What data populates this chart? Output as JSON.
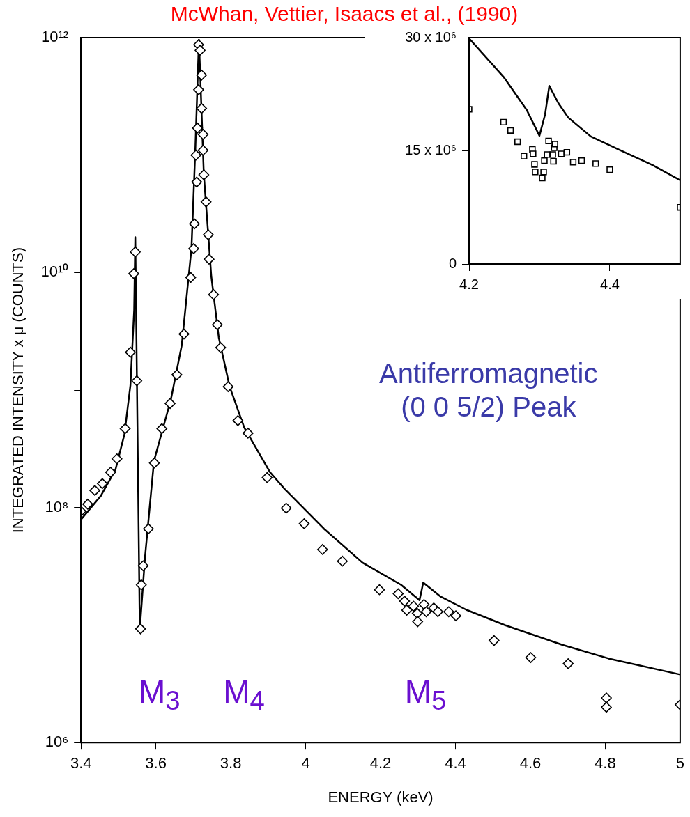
{
  "chart_data": [
    {
      "type": "scatter",
      "title": "McWhan, Vettier, Isaacs et al., (1990)",
      "xlabel": "ENERGY (keV)",
      "ylabel": "INTEGRATED INTENSITY x μ (COUNTS)",
      "log": true,
      "grid": false,
      "xlim": [
        3.4,
        5
      ],
      "xticks": [
        3.4,
        3.6,
        3.8,
        4,
        4.2,
        4.4,
        4.6,
        4.8,
        5
      ],
      "ylim": [
        1000000,
        1000000000000
      ],
      "yticks": [
        {
          "value": 1000000,
          "label": "10⁶"
        },
        {
          "value": 10000000,
          "label": null
        },
        {
          "value": 100000000,
          "label": "10⁸"
        },
        {
          "value": 1000000000,
          "label": null
        },
        {
          "value": 10000000000,
          "label": "10¹⁰"
        },
        {
          "value": 100000000000,
          "label": null
        },
        {
          "value": 1000000000000,
          "label": "10¹²"
        }
      ],
      "annotations": [
        "Antiferromagnetic (0 0 5/2) Peak",
        "M$_{3}$",
        "M$_{4}$",
        "M$_{5}$"
      ],
      "series": [
        {
          "type": "line",
          "marker": "none",
          "color": "#000000",
          "x": [
            3.4,
            3.453,
            3.492,
            3.516,
            3.532,
            3.542,
            3.545,
            3.557,
            3.571,
            3.595,
            3.64,
            3.669,
            3.695,
            3.705,
            3.715,
            3.728,
            3.748,
            3.768,
            3.797,
            3.836,
            3.905,
            3.944,
            4.049,
            4.152,
            4.255,
            4.304,
            4.314,
            4.359,
            4.429,
            4.532,
            4.685,
            4.809,
            5.0
          ],
          "values": [
            79000000,
            126000000,
            210000000,
            420000000,
            1100000000,
            4800000000,
            20000000000,
            9100000,
            38000000,
            250000000,
            830000000,
            2400000000,
            16000000000,
            105000000000,
            960000000000,
            69000000000,
            9300000000,
            2800000000,
            1070000000,
            480000000,
            200000000,
            144000000,
            66000000,
            34000000,
            22000000,
            16300000,
            23000000,
            17600000,
            13500000,
            10000000,
            6800000,
            5200000,
            3800000
          ]
        },
        {
          "type": "scatter",
          "marker": "diamond",
          "color": "#000000",
          "x": [
            3.4,
            3.418,
            3.437,
            3.457,
            3.479,
            3.496,
            3.518,
            3.532,
            3.541,
            3.545,
            3.549,
            3.559,
            3.561,
            3.566,
            3.58,
            3.596,
            3.616,
            3.638,
            3.656,
            3.675,
            3.693,
            3.701,
            3.703,
            3.709,
            3.707,
            3.711,
            3.714,
            3.714,
            3.718,
            3.722,
            3.722,
            3.726,
            3.726,
            3.728,
            3.734,
            3.74,
            3.742,
            3.754,
            3.764,
            3.773,
            3.793,
            3.819,
            3.846,
            3.897,
            3.948,
            3.996,
            4.045,
            4.098,
            4.197,
            4.247,
            4.264,
            4.27,
            4.288,
            4.298,
            4.299,
            4.316,
            4.322,
            4.342,
            4.353,
            4.382,
            4.401,
            4.503,
            4.601,
            4.701,
            4.803,
            4.803,
            5.0
          ],
          "values": [
            93000000,
            107000000,
            140000000,
            160000000,
            200000000,
            260000000,
            470000000,
            2100000000,
            9800000000,
            15000000000,
            1200000000,
            9300000,
            22000000,
            32000000,
            66000000,
            240000000,
            470000000,
            770000000,
            1350000000,
            3000000000,
            9100000000,
            16000000000,
            26000000000,
            59000000000,
            100000000000,
            170000000000,
            360000000000,
            870000000000,
            780000000000,
            480000000000,
            250000000000,
            150000000000,
            110000000000,
            68000000000,
            40000000000,
            21000000000,
            13000000000,
            6500000000,
            3600000000,
            2300000000,
            1070000000,
            550000000,
            430000000,
            180000000,
            99000000,
            73000000,
            44000000,
            35000000,
            20000000,
            18500000,
            16000000,
            13400000,
            14500000,
            12600000,
            10700000,
            15000000,
            13000000,
            14000000,
            13000000,
            13000000,
            12000000,
            7400000,
            5300000,
            4700000,
            2400000,
            2000000,
            2100000
          ]
        }
      ]
    },
    {
      "type": "scatter",
      "grid": false,
      "xlim": [
        4.2,
        4.5
      ],
      "xticks": [
        4.2,
        {
          "value": 4.3,
          "label": null
        },
        4.4
      ],
      "ylim": [
        0,
        30000000
      ],
      "yticks": [
        {
          "value": 0,
          "label": "0"
        },
        {
          "value": 15000000,
          "label": "15 x 10⁶"
        },
        {
          "value": 30000000,
          "label": "30 x 10⁶"
        }
      ],
      "series": [
        {
          "type": "line",
          "marker": "none",
          "color": "#000000",
          "x": [
            4.2,
            4.249,
            4.282,
            4.3,
            4.308,
            4.314,
            4.327,
            4.341,
            4.373,
            4.412,
            4.461,
            4.5
          ],
          "values": [
            29900000,
            24800000,
            20400000,
            17000000,
            19800000,
            23600000,
            21300000,
            19400000,
            16900000,
            15200000,
            13100000,
            11100000
          ]
        },
        {
          "type": "scatter",
          "marker": "square",
          "color": "#000000",
          "x": [
            4.2,
            4.249,
            4.259,
            4.269,
            4.278,
            4.29,
            4.291,
            4.293,
            4.294,
            4.304,
            4.306,
            4.307,
            4.311,
            4.313,
            4.319,
            4.32,
            4.321,
            4.322,
            4.331,
            4.339,
            4.348,
            4.36,
            4.38,
            4.4,
            4.5
          ],
          "values": [
            20500000,
            18800000,
            17700000,
            16200000,
            14300000,
            15200000,
            14600000,
            13200000,
            12200000,
            11400000,
            12200000,
            13700000,
            14500000,
            16300000,
            14500000,
            13600000,
            15400000,
            15900000,
            14600000,
            14800000,
            13500000,
            13700000,
            13300000,
            12500000,
            7500000
          ]
        }
      ]
    }
  ]
}
